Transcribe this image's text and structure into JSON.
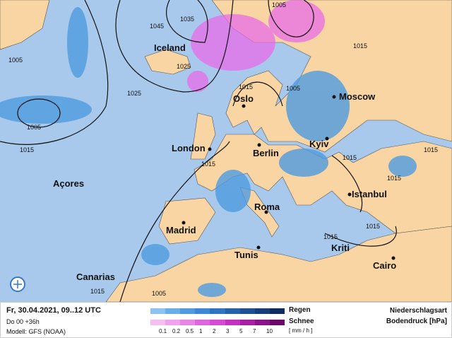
{
  "map": {
    "cities": [
      {
        "name": "Iceland"
      },
      {
        "name": "Oslo"
      },
      {
        "name": "Moscow"
      },
      {
        "name": "London"
      },
      {
        "name": "Berlin"
      },
      {
        "name": "Kyiv"
      },
      {
        "name": "Açores"
      },
      {
        "name": "Istanbul"
      },
      {
        "name": "Madrid"
      },
      {
        "name": "Roma"
      },
      {
        "name": "Tunis"
      },
      {
        "name": "Kriti"
      },
      {
        "name": "Canarias"
      },
      {
        "name": "Cairo"
      }
    ],
    "isobar_labels": [
      "1005",
      "1035",
      "1045",
      "1005",
      "1025",
      "1025",
      "1005",
      "1015",
      "1015",
      "1005",
      "1015",
      "1015",
      "1015",
      "1015",
      "1015",
      "1015",
      "1015",
      "1015",
      "1005"
    ],
    "colors": {
      "land": "#f8d5a3",
      "sea": "#a9c9ec",
      "rain": "#3f86d8",
      "snow": "#e86ce8"
    }
  },
  "footer": {
    "datetime": "Fr, 30.04.2021, 09..12 UTC",
    "run": "Do 00 +36h",
    "model": "Modell: GFS (NOAA)",
    "rain_label": "Regen",
    "snow_label": "Schnee",
    "unit": "[ mm / h ]",
    "title1": "Niederschlagsart",
    "title2": "Bodendruck [hPa]",
    "ticks": [
      "0.1",
      "0.2",
      "0.5",
      "1",
      "2",
      "3",
      "5",
      "7",
      "10"
    ],
    "rain_colors": [
      "#8ec2f2",
      "#6aaee9",
      "#4f9be0",
      "#3c88d6",
      "#2d74c4",
      "#2562ae",
      "#1d5096",
      "#163e7c",
      "#0e2c5e"
    ],
    "snow_colors": [
      "#f6bff2",
      "#f0a2ec",
      "#ea85e6",
      "#e066de",
      "#d64ad4",
      "#c431c0",
      "#a91fa6",
      "#8c148a",
      "#6c0a6c"
    ]
  }
}
